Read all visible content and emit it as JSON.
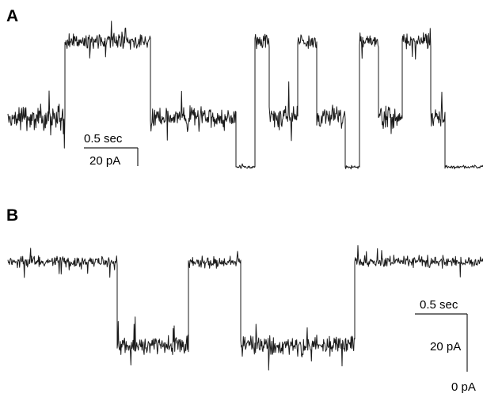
{
  "figure": {
    "panels": [
      {
        "id": "A",
        "label": "A",
        "scale_time": "0.5 sec",
        "scale_current": "20 pA"
      },
      {
        "id": "B",
        "label": "B",
        "scale_time": "0.5 sec",
        "scale_current": "20 pA",
        "zero_label": "0 pA"
      }
    ]
  },
  "chart_data": [
    {
      "type": "line",
      "title": "",
      "xlabel": "",
      "ylabel": "",
      "trace_color": "#1a1a1a",
      "levels": [
        "baseline",
        "mid",
        "high"
      ],
      "series": [
        {
          "segments": [
            {
              "level": "mid",
              "fraction": 0.12
            },
            {
              "level": "high",
              "fraction": 0.18
            },
            {
              "level": "mid",
              "fraction": 0.08
            },
            {
              "level": "mid",
              "fraction": 0.1
            },
            {
              "level": "baseline",
              "fraction": 0.04
            },
            {
              "level": "high",
              "fraction": 0.03
            },
            {
              "level": "mid",
              "fraction": 0.06
            },
            {
              "level": "high",
              "fraction": 0.04
            },
            {
              "level": "mid",
              "fraction": 0.06
            },
            {
              "level": "baseline",
              "fraction": 0.03
            },
            {
              "level": "high",
              "fraction": 0.04
            },
            {
              "level": "mid",
              "fraction": 0.05
            },
            {
              "level": "high",
              "fraction": 0.06
            },
            {
              "level": "mid",
              "fraction": 0.03
            },
            {
              "level": "baseline",
              "fraction": 0.08
            }
          ]
        }
      ]
    },
    {
      "type": "line",
      "title": "",
      "xlabel": "",
      "ylabel": "",
      "trace_color": "#1a1a1a",
      "levels": [
        "closed",
        "open"
      ],
      "series": [
        {
          "segments": [
            {
              "level": "closed",
              "fraction": 0.23
            },
            {
              "level": "open",
              "fraction": 0.15
            },
            {
              "level": "closed",
              "fraction": 0.11
            },
            {
              "level": "open",
              "fraction": 0.24
            },
            {
              "level": "closed",
              "fraction": 0.27
            }
          ]
        }
      ]
    }
  ]
}
